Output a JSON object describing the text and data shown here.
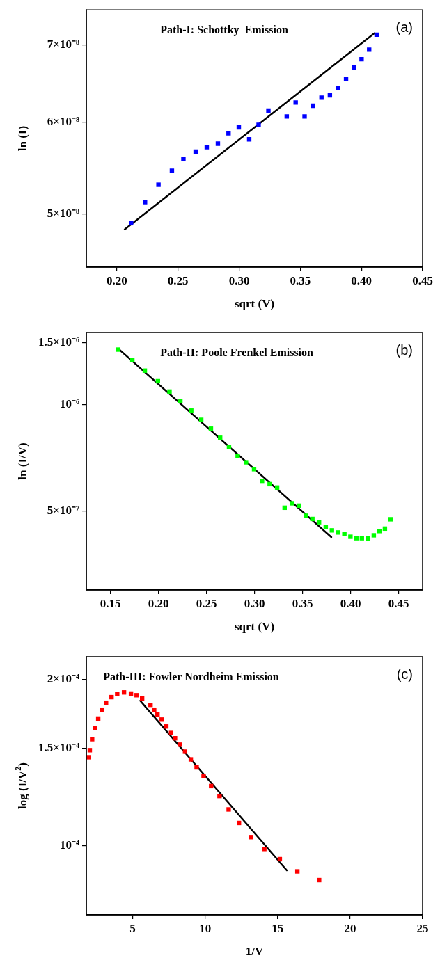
{
  "chart_data": [
    {
      "type": "scatter",
      "xlabel": "sqrt (V)",
      "ylabel": "ln (I)",
      "annotations": [
        "Path-I: Schottky  Emission",
        "(a)"
      ],
      "log": true,
      "grid": false,
      "legend": false,
      "marker": "square",
      "xlim": [
        0.175,
        0.45
      ],
      "xticks": [
        {
          "value": 0.2,
          "label": "0.20"
        },
        0.25,
        {
          "value": 0.3,
          "label": "0.30"
        },
        0.35,
        {
          "value": 0.4,
          "label": "0.40"
        },
        0.45
      ],
      "ylim": [
        4.5e-08,
        7.5e-08
      ],
      "yticks": [
        {
          "value": 5e-08,
          "label": "5×10⁻⁸"
        },
        {
          "value": 6e-08,
          "label": "6×10⁻⁸"
        },
        {
          "value": 7e-08,
          "label": "7×10⁻⁸"
        }
      ],
      "series": [
        {
          "color": "#0000ff",
          "x": [
            0.2116,
            0.223,
            0.234,
            0.245,
            0.2544,
            0.2644,
            0.2735,
            0.2826,
            0.2913,
            0.2997,
            0.3082,
            0.3159,
            0.3239,
            0.3389,
            0.3462,
            0.3535,
            0.3603,
            0.3673,
            0.3742,
            0.3808,
            0.3874,
            0.3938,
            0.4001,
            0.4063,
            0.4124
          ],
          "values": [
            4.91e-08,
            5.12e-08,
            5.3e-08,
            5.45e-08,
            5.58e-08,
            5.66e-08,
            5.71e-08,
            5.75e-08,
            5.87e-08,
            5.94e-08,
            5.8e-08,
            5.97e-08,
            6.14e-08,
            6.07e-08,
            6.24e-08,
            6.07e-08,
            6.2e-08,
            6.3e-08,
            6.33e-08,
            6.42e-08,
            6.54e-08,
            6.69e-08,
            6.8e-08,
            6.93e-08,
            7.14e-08
          ]
        },
        {
          "type": "line",
          "color": "#000000",
          "marker": "none",
          "line_style": "solid",
          "x": [
            0.2064,
            0.4106
          ],
          "values": [
            4.85e-08,
            7.16e-08
          ]
        }
      ]
    },
    {
      "type": "scatter",
      "xlabel": "sqrt (V)",
      "ylabel": "ln (I/V)",
      "annotations": [
        "Path-II: Poole Frenkel Emission",
        "(b)"
      ],
      "log": true,
      "grid": false,
      "legend": false,
      "marker": "square",
      "xlim": [
        0.125,
        0.475
      ],
      "xticks": [
        0.15,
        {
          "value": 0.2,
          "label": "0.20"
        },
        0.25,
        {
          "value": 0.3,
          "label": "0.30"
        },
        0.35,
        {
          "value": 0.4,
          "label": "0.40"
        },
        0.45
      ],
      "ylim": [
        3e-07,
        1.6e-06
      ],
      "yticks": [
        {
          "value": 5e-07,
          "label": "5×10⁻⁷"
        },
        {
          "value": 1e-06,
          "label": "10⁻⁶"
        },
        {
          "value": 1.5e-06,
          "label": "1.5×10⁻⁶"
        }
      ],
      "series": [
        {
          "color": "#00ff00",
          "x": [
            0.1578,
            0.1729,
            0.1859,
            0.1995,
            0.2116,
            0.2229,
            0.2342,
            0.2446,
            0.2547,
            0.2643,
            0.2735,
            0.2825,
            0.2912,
            0.2996,
            0.3079,
            0.3158,
            0.3236,
            0.3314,
            0.3389,
            0.3461,
            0.3534,
            0.3603,
            0.3672,
            0.3742,
            0.3806,
            0.3872,
            0.3936,
            0.3999,
            0.4063,
            0.4118,
            0.4179,
            0.4242,
            0.43,
            0.4358,
            0.4416
          ],
          "values": [
            1.432e-06,
            1.337e-06,
            1.249e-06,
            1.166e-06,
            1.09e-06,
            1.024e-06,
            9.63e-07,
            9.07e-07,
            8.56e-07,
            8.07e-07,
            7.6e-07,
            7.17e-07,
            6.88e-07,
            6.58e-07,
            6.1e-07,
            5.97e-07,
            5.84e-07,
            5.12e-07,
            5.27e-07,
            5.19e-07,
            4.86e-07,
            4.76e-07,
            4.66e-07,
            4.52e-07,
            4.42e-07,
            4.36e-07,
            4.32e-07,
            4.24e-07,
            4.2e-07,
            4.2e-07,
            4.19e-07,
            4.28e-07,
            4.4e-07,
            4.47e-07,
            4.75e-07
          ]
        },
        {
          "type": "line",
          "color": "#000000",
          "marker": "none",
          "line_style": "solid",
          "x": [
            0.1587,
            0.38
          ],
          "values": [
            1.437e-06,
            4.23e-07
          ]
        }
      ]
    },
    {
      "type": "scatter",
      "xlabel": "1/V",
      "ylabel": "log (I/V$^{2}$)",
      "annotations": [
        "Path-III: Fowler Nordheim Emission",
        "(c)"
      ],
      "log": true,
      "grid": false,
      "legend": false,
      "marker": "square",
      "xlim": [
        1.8,
        25
      ],
      "xticks": [
        5,
        10,
        15,
        20,
        25
      ],
      "ylim": [
        7.5e-05,
        0.00022
      ],
      "yticks": [
        {
          "value": 0.0001,
          "label": "10⁻⁴"
        },
        {
          "value": 0.00015,
          "label": "1.5×10⁻⁴"
        },
        {
          "value": 0.0002,
          "label": "2×10⁻⁴"
        }
      ],
      "series": [
        {
          "color": "#ff0000",
          "x": [
            1.97,
            2.04,
            2.2,
            2.39,
            2.62,
            2.87,
            3.16,
            3.54,
            3.93,
            4.4,
            4.88,
            5.27,
            5.65,
            6.23,
            6.48,
            6.71,
            7.0,
            7.32,
            7.65,
            7.92,
            8.26,
            8.61,
            9.01,
            9.41,
            9.89,
            10.41,
            10.99,
            11.62,
            12.33,
            13.16,
            14.08,
            15.15,
            16.36,
            17.86
          ],
          "values": [
            0.0001447,
            0.000149,
            0.000156,
            0.0001635,
            0.00017,
            0.0001764,
            0.0001816,
            0.0001859,
            0.0001885,
            0.0001896,
            0.0001887,
            0.0001874,
            0.0001848,
            0.00018,
            0.0001764,
            0.0001729,
            0.0001693,
            0.0001645,
            0.0001601,
            0.0001566,
            0.0001525,
            0.0001481,
            0.0001434,
            0.0001387,
            0.0001337,
            0.0001283,
            0.0001231,
            0.0001164,
            0.00011,
            0.0001037,
            9.87e-05,
            9.46e-05,
            8.99e-05,
            8.67e-05
          ]
        },
        {
          "type": "line",
          "color": "#000000",
          "marker": "none",
          "line_style": "solid",
          "x": [
            5.52,
            15.63
          ],
          "values": [
            0.0001831,
            9.03e-05
          ]
        }
      ]
    }
  ]
}
